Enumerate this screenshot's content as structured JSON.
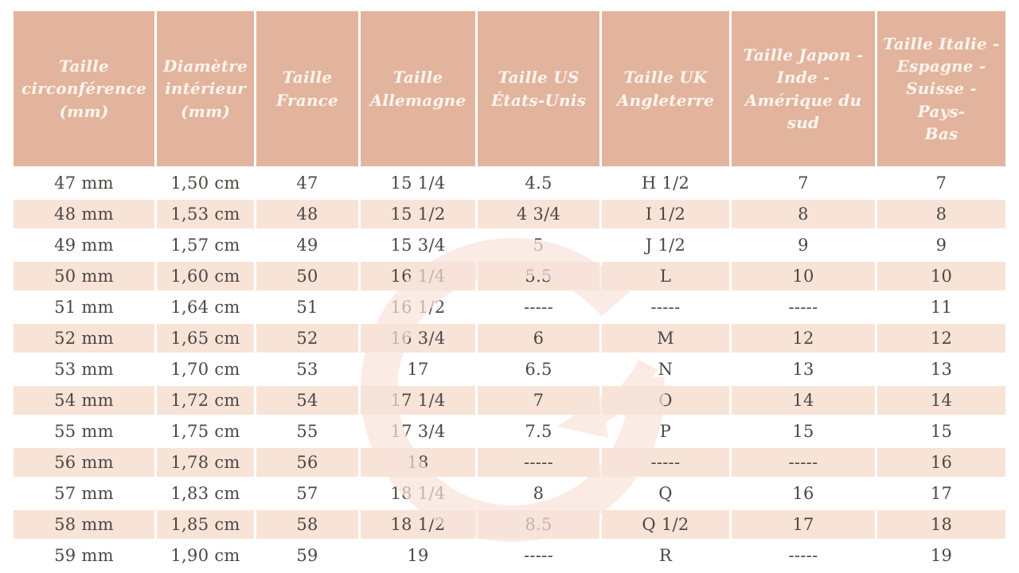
{
  "chart_data": {
    "type": "table",
    "columns": [
      "Taille\ncirconférence\n(mm)",
      "Diamètre\nintérieur\n(mm)",
      "Taille\nFrance",
      "Taille\nAllemagne",
      "Taille US\nÉtats-Unis",
      "Taille UK\nAngleterre",
      "Taille Japon -\nInde -\nAmérique du\nsud",
      "Taille Italie -\nEspagne -\nSuisse - Pays-\nBas"
    ],
    "rows": [
      [
        "47 mm",
        "1,50 cm",
        "47",
        "15 1/4",
        "4.5",
        "H 1/2",
        "7",
        "7"
      ],
      [
        "48 mm",
        "1,53 cm",
        "48",
        "15 1/2",
        "4 3/4",
        "I 1/2",
        "8",
        "8"
      ],
      [
        "49 mm",
        "1,57 cm",
        "49",
        "15 3/4",
        "5",
        "J 1/2",
        "9",
        "9"
      ],
      [
        "50 mm",
        "1,60 cm",
        "50",
        "16 1/4",
        "5.5",
        "L",
        "10",
        "10"
      ],
      [
        "51 mm",
        "1,64 cm",
        "51",
        "16 1/2",
        "-----",
        "-----",
        "-----",
        "11"
      ],
      [
        "52 mm",
        "1,65 cm",
        "52",
        "16 3/4",
        "6",
        "M",
        "12",
        "12"
      ],
      [
        "53 mm",
        "1,70 cm",
        "53",
        "17",
        "6.5",
        "N",
        "13",
        "13"
      ],
      [
        "54 mm",
        "1,72 cm",
        "54",
        "17 1/4",
        "7",
        "O",
        "14",
        "14"
      ],
      [
        "55 mm",
        "1,75 cm",
        "55",
        "17 3/4",
        "7.5",
        "P",
        "15",
        "15"
      ],
      [
        "56 mm",
        "1,78 cm",
        "56",
        "18",
        "-----",
        "-----",
        "-----",
        "16"
      ],
      [
        "57 mm",
        "1,83 cm",
        "57",
        "18 1/4",
        "8",
        "Q",
        "16",
        "17"
      ],
      [
        "58 mm",
        "1,85 cm",
        "58",
        "18 1/2",
        "8.5",
        "Q 1/2",
        "17",
        "18"
      ],
      [
        "59 mm",
        "1,90 cm",
        "59",
        "19",
        "-----",
        "R",
        "-----",
        "19"
      ]
    ],
    "layout": {
      "stripe_pattern": "even rows white, odd rows shaded",
      "grid": "white 3px gaps between cells"
    }
  },
  "colors": {
    "header_bg": "#e2b49d",
    "header_text": "#fcf5ee",
    "row_bg": "#ffffff",
    "row_stripe_bg": "#f8e3d7",
    "body_text": "#4c4745",
    "watermark_pink": "#f2cdbd"
  },
  "watermark": {
    "name": "g-logo",
    "description": "large semi-transparent circular G brand mark with dot and arrow"
  }
}
